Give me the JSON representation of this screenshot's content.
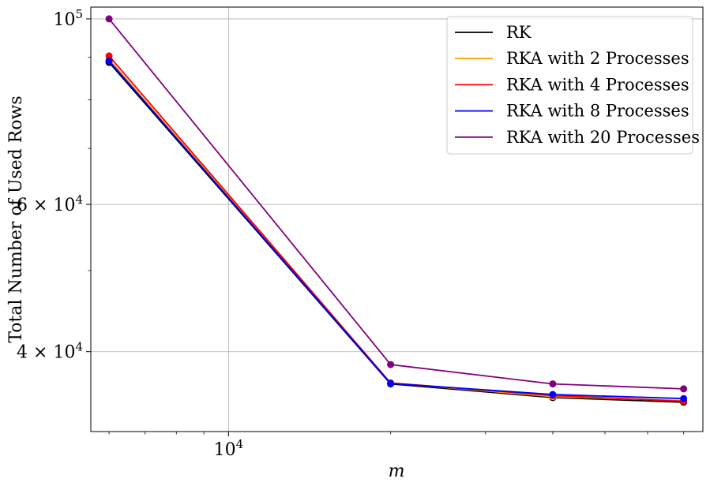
{
  "chart_data": {
    "type": "line",
    "xscale": "log",
    "yscale": "log",
    "xlabel": "m",
    "ylabel": "Total Number of Used Rows",
    "xlim": [
      5550,
      76000
    ],
    "ylim": [
      32100,
      103300
    ],
    "grid": true,
    "legend_position": "top-right",
    "x_ticks": [
      {
        "value": 10000,
        "mantissa": "10",
        "exp": "4"
      }
    ],
    "y_ticks": [
      {
        "value": 40000,
        "mantissa": "4 × 10",
        "exp": "4"
      },
      {
        "value": 60000,
        "mantissa": "6 × 10",
        "exp": "4"
      },
      {
        "value": 100000,
        "mantissa": "10",
        "exp": "5"
      }
    ],
    "x": [
      6000,
      20000,
      40000,
      70000
    ],
    "series": [
      {
        "name": "RK",
        "color": "#000000",
        "values": [
          88700,
          36600,
          35250,
          34800
        ]
      },
      {
        "name": "RKA with 2 Processes",
        "color": "#ffa500",
        "values": [
          89500,
          36700,
          35350,
          34950
        ]
      },
      {
        "name": "RKA with 4 Processes",
        "color": "#ff0000",
        "values": [
          90300,
          36700,
          35450,
          34900
        ]
      },
      {
        "name": "RKA with 8 Processes",
        "color": "#0000ff",
        "values": [
          89100,
          36650,
          35550,
          35150
        ]
      },
      {
        "name": "RKA with 20 Processes",
        "color": "#800080",
        "values": [
          100000,
          38600,
          36600,
          36100
        ]
      }
    ]
  }
}
